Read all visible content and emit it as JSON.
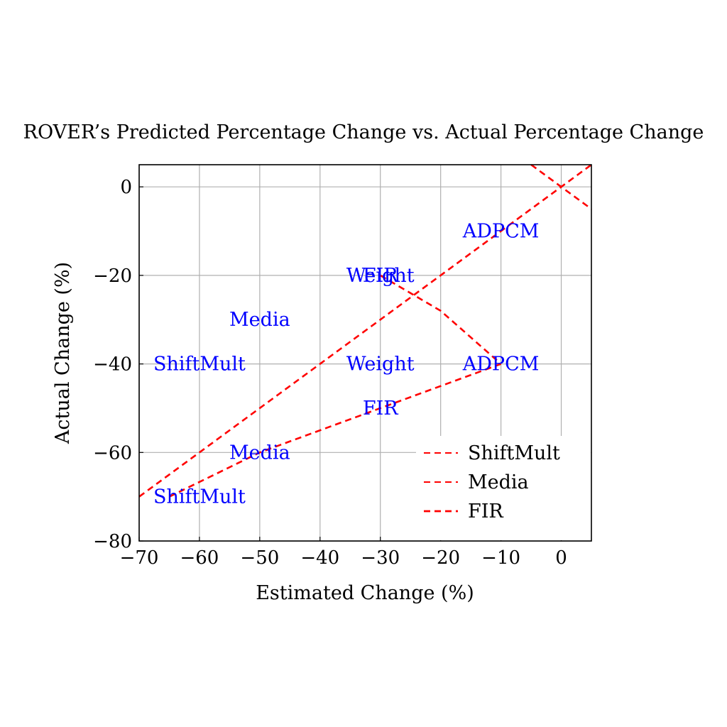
{
  "chart_data": {
    "type": "line",
    "title": "ROVER’s Predicted Percentage Change vs. Actual Percentage Change",
    "xlabel": "Estimated Change (%)",
    "ylabel": "Actual Change (%)",
    "xlim": [
      -70,
      5
    ],
    "ylim": [
      -80,
      5
    ],
    "xticks": [
      -70,
      -60,
      -50,
      -40,
      -30,
      -20,
      -10,
      0
    ],
    "yticks": [
      -80,
      -60,
      -40,
      -20,
      0
    ],
    "grid": true,
    "legend_position": "bottom-right",
    "series": [
      {
        "name": "ShiftMult",
        "color": "#ff0000",
        "style": "dashed",
        "points": [
          [
            -65,
            -70
          ],
          [
            -50,
            -60
          ],
          [
            -30,
            -50
          ],
          [
            -10,
            -40
          ]
        ]
      },
      {
        "name": "Media",
        "color": "#ff0000",
        "style": "dashed",
        "points": [
          [
            -30,
            -20
          ],
          [
            -20,
            -28
          ],
          [
            -10,
            -40
          ]
        ]
      },
      {
        "name": "FIR",
        "color": "#ff0000",
        "style": "dashed",
        "points": [
          [
            -70,
            -70
          ],
          [
            5,
            5
          ]
        ]
      },
      {
        "name": "",
        "color": "#ff0000",
        "style": "dashed",
        "in_legend": false,
        "points": [
          [
            -5,
            5
          ],
          [
            5,
            -5
          ]
        ]
      }
    ],
    "annotations": [
      {
        "text": "ShiftMult",
        "x": -60,
        "y": -40
      },
      {
        "text": "ShiftMult",
        "x": -60,
        "y": -70
      },
      {
        "text": "Media",
        "x": -50,
        "y": -30
      },
      {
        "text": "Media",
        "x": -50,
        "y": -60
      },
      {
        "text": "Weight",
        "x": -30,
        "y": -20
      },
      {
        "text": "FIR",
        "x": -30,
        "y": -20
      },
      {
        "text": "Weight",
        "x": -30,
        "y": -40
      },
      {
        "text": "FIR",
        "x": -30,
        "y": -50
      },
      {
        "text": "ADPCM",
        "x": -10,
        "y": -10
      },
      {
        "text": "ADPCM",
        "x": -10,
        "y": -40
      }
    ]
  }
}
